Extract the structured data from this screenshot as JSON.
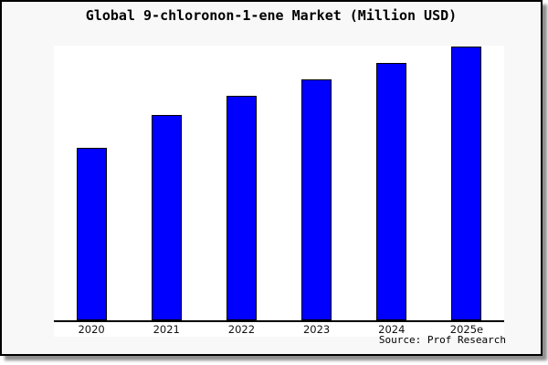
{
  "title": "Global 9-chloronon-1-ene Market (Million USD)",
  "source": "Source: Prof Research",
  "colors": {
    "card_background": "#f8f8f8",
    "card_border": "#000000",
    "plot_background": "#ffffff",
    "bar_fill": "#0000ff",
    "bar_border": "#000000",
    "axis_line": "#000000",
    "title_text": "#000000",
    "label_text": "#111111",
    "shadow": "#8f8f8f"
  },
  "chart_data": {
    "type": "bar",
    "title": "Global 9-chloronon-1-ene Market (Million USD)",
    "categories": [
      "2020",
      "2021",
      "2022",
      "2023",
      "2024",
      "2025e"
    ],
    "values": [
      63,
      75,
      82,
      88,
      94,
      100
    ],
    "value_note": "no y-axis ticks shown; values estimated relative to 2025e = 100",
    "xlabel": "",
    "ylabel": "Million USD",
    "ylim": [
      0,
      100
    ],
    "grid": false,
    "legend": "none",
    "source": "Source: Prof Research"
  }
}
